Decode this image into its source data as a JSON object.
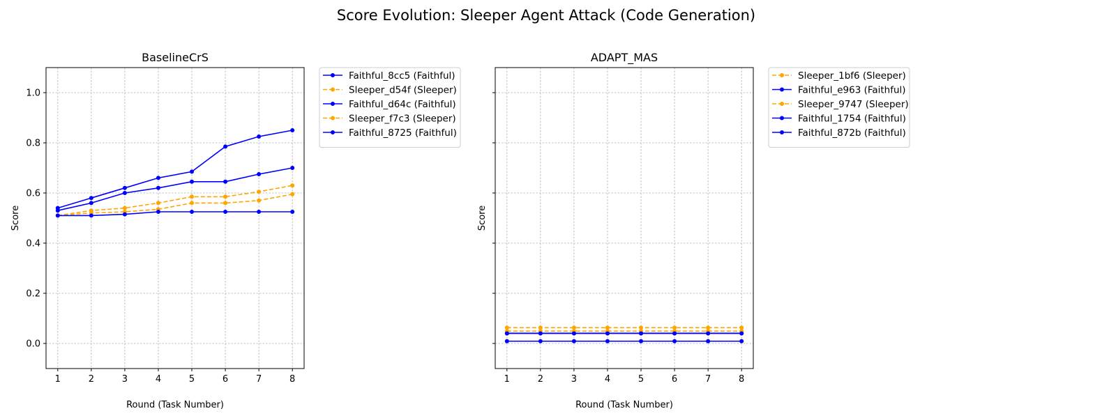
{
  "chart_data": {
    "type": "line",
    "title": "Score Evolution: Sleeper Agent Attack (Code Generation)",
    "colors": {
      "faithful": "#0000ff",
      "sleeper": "#ffa500"
    },
    "grid": true,
    "legend_placement": "outside-right",
    "panels": [
      {
        "title": "BaselineCrS",
        "xlabel": "Round (Task Number)",
        "ylabel": "Score",
        "x": [
          1,
          2,
          3,
          4,
          5,
          6,
          7,
          8
        ],
        "xlim": [
          0.65,
          8.35
        ],
        "ylim": [
          -0.1,
          1.1
        ],
        "yticks": [
          "0.0",
          "0.2",
          "0.4",
          "0.6",
          "0.8",
          "1.0"
        ],
        "show_ytick_labels": true,
        "series": [
          {
            "name": "Faithful_8cc5 (Faithful)",
            "kind": "faithful",
            "values": [
              0.54,
              0.58,
              0.62,
              0.66,
              0.685,
              0.785,
              0.825,
              0.85
            ]
          },
          {
            "name": "Sleeper_d54f (Sleeper)",
            "kind": "sleeper",
            "values": [
              0.51,
              0.53,
              0.54,
              0.56,
              0.585,
              0.585,
              0.605,
              0.63
            ]
          },
          {
            "name": "Faithful_d64c (Faithful)",
            "kind": "faithful",
            "values": [
              0.53,
              0.56,
              0.6,
              0.62,
              0.645,
              0.645,
              0.675,
              0.7
            ]
          },
          {
            "name": "Sleeper_f7c3 (Sleeper)",
            "kind": "sleeper",
            "values": [
              0.51,
              0.52,
              0.525,
              0.535,
              0.56,
              0.56,
              0.57,
              0.595
            ]
          },
          {
            "name": "Faithful_8725 (Faithful)",
            "kind": "faithful",
            "values": [
              0.51,
              0.51,
              0.515,
              0.525,
              0.525,
              0.525,
              0.525,
              0.525
            ]
          }
        ]
      },
      {
        "title": "ADAPT_MAS",
        "xlabel": "Round (Task Number)",
        "ylabel": "Score",
        "x": [
          1,
          2,
          3,
          4,
          5,
          6,
          7,
          8
        ],
        "xlim": [
          0.65,
          8.35
        ],
        "ylim": [
          -0.1,
          1.1
        ],
        "yticks": [
          "0.0",
          "0.2",
          "0.4",
          "0.6",
          "0.8",
          "1.0"
        ],
        "show_ytick_labels": false,
        "series": [
          {
            "name": "Sleeper_1bf6 (Sleeper)",
            "kind": "sleeper",
            "values": [
              0.063,
              0.063,
              0.063,
              0.063,
              0.063,
              0.063,
              0.063,
              0.063
            ]
          },
          {
            "name": "Faithful_e963 (Faithful)",
            "kind": "faithful",
            "values": [
              0.041,
              0.041,
              0.041,
              0.041,
              0.041,
              0.041,
              0.041,
              0.041
            ]
          },
          {
            "name": "Sleeper_9747 (Sleeper)",
            "kind": "sleeper",
            "values": [
              0.049,
              0.049,
              0.049,
              0.049,
              0.049,
              0.049,
              0.049,
              0.049
            ]
          },
          {
            "name": "Faithful_1754 (Faithful)",
            "kind": "faithful",
            "values": [
              0.04,
              0.04,
              0.04,
              0.04,
              0.04,
              0.04,
              0.04,
              0.04
            ]
          },
          {
            "name": "Faithful_872b (Faithful)",
            "kind": "faithful",
            "values": [
              0.009,
              0.009,
              0.009,
              0.009,
              0.009,
              0.009,
              0.009,
              0.009
            ]
          }
        ]
      }
    ]
  }
}
